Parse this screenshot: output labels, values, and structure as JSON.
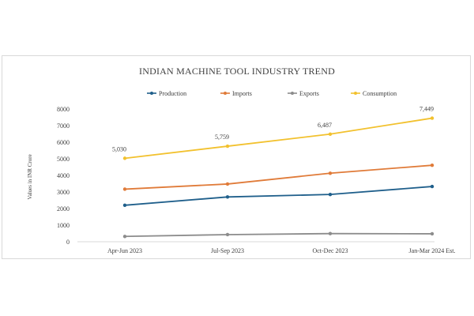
{
  "chart_data": {
    "type": "line",
    "title": "INDIAN MACHINE TOOL INDUSTRY TREND",
    "ylabel": "Values in INR Crore",
    "xlabel": "",
    "categories": [
      "Apr-Jun 2023",
      "Jul-Sep 2023",
      "Oct-Dec 2023",
      "Jan-Mar 2024 Est."
    ],
    "ylim": [
      0,
      8000
    ],
    "yticks": [
      "0",
      "1000",
      "2000",
      "3000",
      "4000",
      "5000",
      "6000",
      "7000",
      "8000"
    ],
    "grid": false,
    "legend": "top",
    "series": [
      {
        "name": "Production",
        "color": "#1f5f8b",
        "values": [
          2200,
          2700,
          2850,
          3330
        ]
      },
      {
        "name": "Imports",
        "color": "#e07b39",
        "values": [
          3170,
          3480,
          4130,
          4610
        ]
      },
      {
        "name": "Exports",
        "color": "#8c8c8c",
        "values": [
          320,
          430,
          490,
          480
        ]
      },
      {
        "name": "Consumption",
        "color": "#f2c12e",
        "values": [
          5030,
          5759,
          6487,
          7449
        ],
        "data_labels": [
          "5,030",
          "5,759",
          "6,487",
          "7,449"
        ]
      }
    ]
  }
}
